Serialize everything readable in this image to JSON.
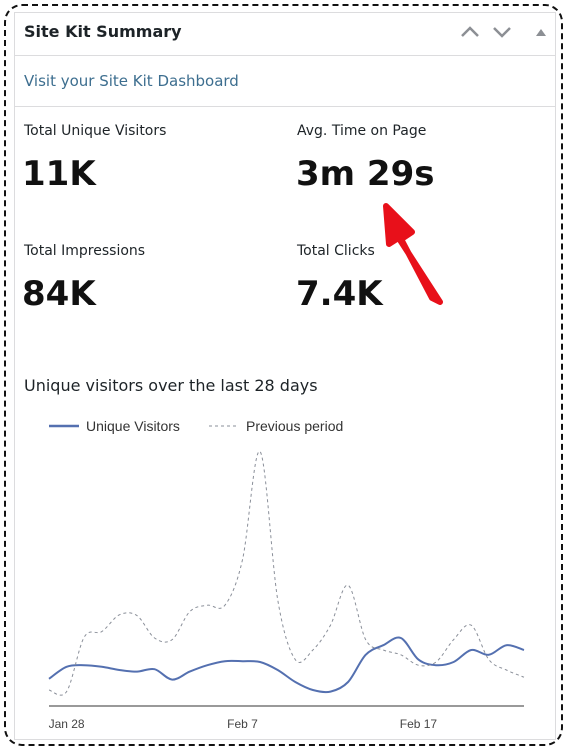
{
  "header": {
    "title": "Site Kit Summary"
  },
  "link": "Visit your Site Kit Dashboard",
  "metrics": [
    {
      "label": "Total Unique Visitors",
      "value": "11K"
    },
    {
      "label": "Avg. Time on Page",
      "value": "3m 29s"
    },
    {
      "label": "Total Impressions",
      "value": "84K"
    },
    {
      "label": "Total Clicks",
      "value": "7.4K"
    }
  ],
  "chart_data": {
    "type": "line",
    "title": "Unique visitors over the last 28 days",
    "categories": [
      null,
      "Jan 28",
      null,
      null,
      null,
      null,
      null,
      null,
      null,
      null,
      null,
      "Feb 7",
      null,
      null,
      null,
      null,
      null,
      null,
      null,
      null,
      null,
      "Feb 17",
      null,
      null,
      null,
      null,
      null,
      null
    ],
    "series": [
      {
        "name": "Unique Visitors",
        "color": "#5470b0",
        "style": "solid",
        "values": [
          34,
          49,
          51,
          49,
          45,
          43,
          46,
          33,
          43,
          51,
          56,
          56,
          55,
          45,
          30,
          20,
          18,
          30,
          64,
          76,
          85,
          58,
          51,
          55,
          70,
          64,
          76,
          70
        ]
      },
      {
        "name": "Previous period",
        "color": "#8a8f99",
        "style": "dashed",
        "values": [
          20,
          18,
          86,
          93,
          114,
          113,
          85,
          83,
          118,
          126,
          126,
          183,
          318,
          133,
          58,
          70,
          101,
          151,
          83,
          70,
          64,
          51,
          55,
          83,
          101,
          58,
          45,
          36
        ]
      }
    ],
    "ylim": [
      0,
      330
    ]
  }
}
